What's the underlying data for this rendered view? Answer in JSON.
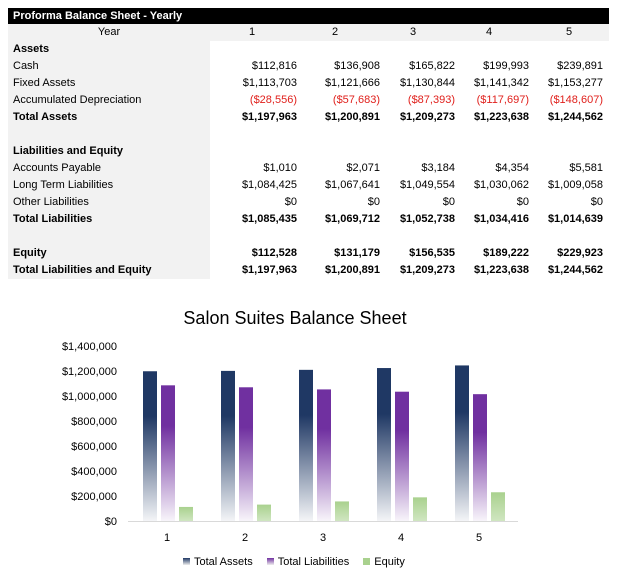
{
  "table": {
    "title": "Proforma Balance Sheet - Yearly",
    "year_label": "Year",
    "years": [
      "1",
      "2",
      "3",
      "4",
      "5"
    ],
    "rows": [
      {
        "label": "Assets",
        "style": "bold",
        "values": []
      },
      {
        "label": "Cash",
        "style": "",
        "values": [
          "$112,816",
          "$136,908",
          "$165,822",
          "$199,993",
          "$239,891"
        ]
      },
      {
        "label": "Fixed Assets",
        "style": "",
        "values": [
          "$1,113,703",
          "$1,121,666",
          "$1,130,844",
          "$1,141,342",
          "$1,153,277"
        ]
      },
      {
        "label": "Accumulated Depreciation",
        "style": "red",
        "values": [
          "($28,556)",
          "($57,683)",
          "($87,393)",
          "($117,697)",
          "($148,607)"
        ]
      },
      {
        "label": "Total Assets",
        "style": "bold",
        "values": [
          "$1,197,963",
          "$1,200,891",
          "$1,209,273",
          "$1,223,638",
          "$1,244,562"
        ]
      },
      {
        "label": "",
        "style": "",
        "values": []
      },
      {
        "label": "Liabilities and Equity",
        "style": "bold",
        "values": []
      },
      {
        "label": "Accounts Payable",
        "style": "",
        "values": [
          "$1,010",
          "$2,071",
          "$3,184",
          "$4,354",
          "$5,581"
        ]
      },
      {
        "label": "Long Term Liabilities",
        "style": "",
        "values": [
          "$1,084,425",
          "$1,067,641",
          "$1,049,554",
          "$1,030,062",
          "$1,009,058"
        ]
      },
      {
        "label": "Other Liabilities",
        "style": "",
        "values": [
          "$0",
          "$0",
          "$0",
          "$0",
          "$0"
        ]
      },
      {
        "label": "Total Liabilities",
        "style": "bold",
        "values": [
          "$1,085,435",
          "$1,069,712",
          "$1,052,738",
          "$1,034,416",
          "$1,014,639"
        ]
      },
      {
        "label": "",
        "style": "",
        "values": []
      },
      {
        "label": "Equity",
        "style": "bold",
        "values": [
          "$112,528",
          "$131,179",
          "$156,535",
          "$189,222",
          "$229,923"
        ]
      },
      {
        "label": "Total Liabilities and Equity",
        "style": "bold",
        "values": [
          "$1,197,963",
          "$1,200,891",
          "$1,209,273",
          "$1,223,638",
          "$1,244,562"
        ]
      }
    ]
  },
  "chart_data": {
    "type": "bar",
    "title": "Salon Suites Balance Sheet",
    "categories": [
      "1",
      "2",
      "3",
      "4",
      "5"
    ],
    "ylim": [
      0,
      1400000
    ],
    "yticks": [
      "$0",
      "$200,000",
      "$400,000",
      "$600,000",
      "$800,000",
      "$1,000,000",
      "$1,200,000",
      "$1,400,000"
    ],
    "grid": false,
    "legend": "bottom",
    "series": [
      {
        "name": "Total Assets",
        "color": "#1f3864",
        "values": [
          1197963,
          1200891,
          1209273,
          1223638,
          1244562
        ]
      },
      {
        "name": "Total Liabilities",
        "color": "#7030a0",
        "values": [
          1085435,
          1069712,
          1052738,
          1034416,
          1014639
        ]
      },
      {
        "name": "Equity",
        "color": "#a9d18e",
        "values": [
          112528,
          131179,
          156535,
          189222,
          229923
        ]
      }
    ]
  }
}
